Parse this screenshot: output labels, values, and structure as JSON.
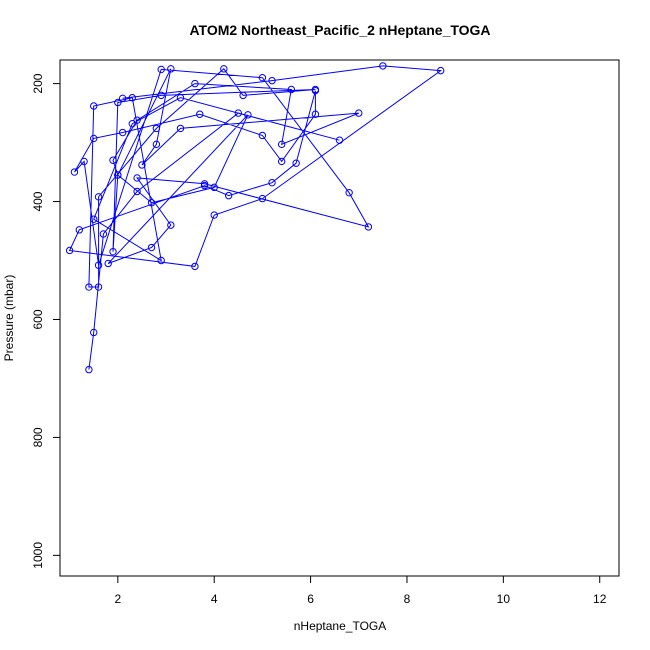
{
  "chart_data": {
    "type": "line",
    "title": "ATOM2 Northeast_Pacific_2 nHeptane_TOGA",
    "xlabel": "nHeptane_TOGA",
    "ylabel": "Pressure (mbar)",
    "xlim": [
      0.8,
      12.4
    ],
    "ylim": [
      1035,
      160
    ],
    "y_reversed": true,
    "x_ticks": [
      "2",
      "4",
      "6",
      "8",
      "10",
      "12"
    ],
    "y_ticks": [
      "200",
      "400",
      "600",
      "800",
      "1000"
    ],
    "grid": false,
    "series": [
      {
        "color": "#0000ff",
        "marker": "open-circle",
        "points": [
          {
            "x": 1.4,
            "y": 685
          },
          {
            "x": 1.5,
            "y": 622
          },
          {
            "x": 1.7,
            "y": 455
          },
          {
            "x": 2.4,
            "y": 383
          },
          {
            "x": 4.5,
            "y": 250
          },
          {
            "x": 6.6,
            "y": 296
          },
          {
            "x": 3.3,
            "y": 224
          },
          {
            "x": 2.3,
            "y": 268
          },
          {
            "x": 1.5,
            "y": 430
          },
          {
            "x": 2.9,
            "y": 500
          },
          {
            "x": 2.3,
            "y": 224
          },
          {
            "x": 1.5,
            "y": 238
          },
          {
            "x": 1.4,
            "y": 545
          },
          {
            "x": 1.6,
            "y": 545
          },
          {
            "x": 1.6,
            "y": 392
          },
          {
            "x": 2.8,
            "y": 276
          },
          {
            "x": 4.2,
            "y": 175
          },
          {
            "x": 4.6,
            "y": 220
          },
          {
            "x": 6.1,
            "y": 210
          },
          {
            "x": 2.9,
            "y": 220
          },
          {
            "x": 2.0,
            "y": 232
          },
          {
            "x": 1.9,
            "y": 485
          },
          {
            "x": 2.0,
            "y": 355
          },
          {
            "x": 3.1,
            "y": 175
          },
          {
            "x": 2.8,
            "y": 303
          },
          {
            "x": 2.5,
            "y": 338
          },
          {
            "x": 3.3,
            "y": 276
          },
          {
            "x": 7.0,
            "y": 250
          },
          {
            "x": 5.4,
            "y": 303
          },
          {
            "x": 5.6,
            "y": 210
          },
          {
            "x": 3.6,
            "y": 200
          },
          {
            "x": 2.4,
            "y": 262
          },
          {
            "x": 1.9,
            "y": 330
          },
          {
            "x": 2.0,
            "y": 355
          },
          {
            "x": 2.7,
            "y": 402
          },
          {
            "x": 4.0,
            "y": 376
          },
          {
            "x": 4.7,
            "y": 253
          },
          {
            "x": 1.8,
            "y": 505
          },
          {
            "x": 2.7,
            "y": 478
          },
          {
            "x": 3.1,
            "y": 440
          },
          {
            "x": 2.4,
            "y": 360
          },
          {
            "x": 3.8,
            "y": 370
          },
          {
            "x": 7.2,
            "y": 443
          },
          {
            "x": 6.8,
            "y": 385
          },
          {
            "x": 5.0,
            "y": 190
          },
          {
            "x": 2.9,
            "y": 176
          },
          {
            "x": 1.6,
            "y": 508
          },
          {
            "x": 1.3,
            "y": 332
          },
          {
            "x": 1.1,
            "y": 350
          },
          {
            "x": 1.5,
            "y": 293
          },
          {
            "x": 2.1,
            "y": 283
          },
          {
            "x": 3.7,
            "y": 252
          },
          {
            "x": 5.0,
            "y": 288
          },
          {
            "x": 5.4,
            "y": 332
          },
          {
            "x": 6.1,
            "y": 252
          },
          {
            "x": 6.1,
            "y": 212
          },
          {
            "x": 5.7,
            "y": 335
          },
          {
            "x": 5.2,
            "y": 368
          },
          {
            "x": 4.3,
            "y": 390
          },
          {
            "x": 3.8,
            "y": 373
          },
          {
            "x": 1.2,
            "y": 448
          },
          {
            "x": 1.0,
            "y": 483
          },
          {
            "x": 3.6,
            "y": 510
          },
          {
            "x": 4.0,
            "y": 423
          },
          {
            "x": 5.0,
            "y": 395
          },
          {
            "x": 8.7,
            "y": 178
          },
          {
            "x": 7.5,
            "y": 170
          },
          {
            "x": 5.2,
            "y": 195
          },
          {
            "x": 2.1,
            "y": 225
          }
        ]
      }
    ]
  }
}
